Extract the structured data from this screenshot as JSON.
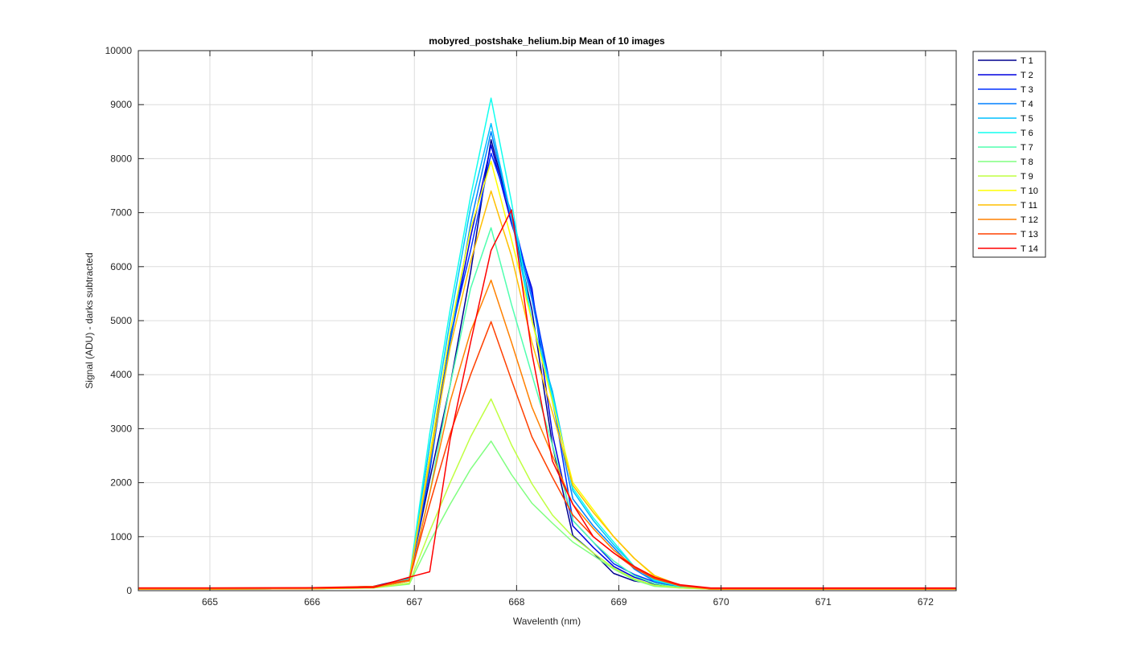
{
  "chart_data": {
    "type": "line",
    "title": "mobyred_postshake_helium.bip  Mean of 10 images",
    "xlabel": "Wavelenth (nm)",
    "ylabel": "Signal (ADU) - darks subtracted",
    "xlim": [
      664.3,
      672.3
    ],
    "ylim": [
      0,
      10000
    ],
    "xticks": [
      665,
      666,
      667,
      668,
      669,
      670,
      671,
      672
    ],
    "yticks": [
      0,
      1000,
      2000,
      3000,
      4000,
      5000,
      6000,
      7000,
      8000,
      9000,
      10000
    ],
    "grid": true,
    "legend_position": "outside-right",
    "series": [
      {
        "name": "T 1",
        "color": "#00008f",
        "x": [
          664.3,
          665,
          666,
          666.6,
          666.95,
          667.15,
          667.35,
          667.55,
          667.75,
          667.95,
          668.15,
          668.35,
          668.55,
          668.75,
          668.95,
          669.15,
          669.35,
          669.6,
          669.9,
          670.5,
          671.5,
          672.3
        ],
        "y": [
          40,
          40,
          45,
          80,
          230,
          2050,
          3800,
          5900,
          8350,
          6900,
          5200,
          2700,
          1020,
          700,
          320,
          180,
          120,
          60,
          30,
          30,
          30,
          30
        ]
      },
      {
        "name": "T 2",
        "color": "#0000df",
        "x": [
          664.3,
          665,
          666,
          666.6,
          666.95,
          667.15,
          667.35,
          667.55,
          667.75,
          667.95,
          668.15,
          668.35,
          668.55,
          668.75,
          668.95,
          669.15,
          669.35,
          669.6,
          669.9,
          670.5,
          671.5,
          672.3
        ],
        "y": [
          40,
          40,
          45,
          70,
          200,
          2500,
          4600,
          6550,
          8250,
          6800,
          5600,
          2900,
          1200,
          800,
          450,
          250,
          130,
          70,
          30,
          30,
          30,
          30
        ]
      },
      {
        "name": "T 3",
        "color": "#0030ff",
        "x": [
          664.3,
          665,
          666,
          666.6,
          666.95,
          667.15,
          667.35,
          667.55,
          667.75,
          667.95,
          668.15,
          668.35,
          668.55,
          668.75,
          668.95,
          669.15,
          669.35,
          669.6,
          669.9,
          670.5,
          671.5,
          672.3
        ],
        "y": [
          30,
          30,
          35,
          60,
          180,
          2200,
          4700,
          6300,
          8100,
          7000,
          5500,
          3600,
          1300,
          900,
          500,
          300,
          160,
          80,
          30,
          30,
          30,
          30
        ]
      },
      {
        "name": "T 4",
        "color": "#0080ff",
        "x": [
          664.3,
          665,
          666,
          666.6,
          666.95,
          667.15,
          667.35,
          667.55,
          667.75,
          667.95,
          668.15,
          668.35,
          668.55,
          668.75,
          668.95,
          669.15,
          669.35,
          669.6,
          669.9,
          670.5,
          671.5,
          672.3
        ],
        "y": [
          30,
          30,
          35,
          60,
          180,
          2300,
          4600,
          6800,
          8500,
          6900,
          5400,
          3500,
          1700,
          1200,
          800,
          400,
          170,
          80,
          30,
          30,
          30,
          30
        ]
      },
      {
        "name": "T 5",
        "color": "#00c0ff",
        "x": [
          664.3,
          665,
          666,
          666.6,
          666.95,
          667.15,
          667.35,
          667.55,
          667.75,
          667.95,
          668.15,
          668.35,
          668.55,
          668.75,
          668.95,
          669.15,
          669.35,
          669.6,
          669.9,
          670.5,
          671.5,
          672.3
        ],
        "y": [
          30,
          30,
          35,
          60,
          200,
          2700,
          5000,
          7100,
          8650,
          6900,
          5000,
          3700,
          1850,
          1300,
          850,
          450,
          180,
          80,
          30,
          30,
          30,
          30
        ]
      },
      {
        "name": "T 6",
        "color": "#10ffef",
        "x": [
          664.3,
          665,
          666,
          666.6,
          666.95,
          667.15,
          667.35,
          667.55,
          667.75,
          667.95,
          668.15,
          668.35,
          668.55,
          668.75,
          668.95,
          669.15,
          669.35,
          669.6,
          669.9,
          670.5,
          671.5,
          672.3
        ],
        "y": [
          30,
          30,
          35,
          60,
          220,
          2900,
          5200,
          7300,
          9120,
          7200,
          5000,
          3600,
          1900,
          1350,
          900,
          450,
          200,
          80,
          30,
          30,
          30,
          30
        ]
      },
      {
        "name": "T 7",
        "color": "#50ffaf",
        "x": [
          664.3,
          665,
          666,
          666.6,
          666.95,
          667.15,
          667.35,
          667.55,
          667.75,
          667.95,
          668.15,
          668.35,
          668.55,
          668.75,
          668.95,
          669.15,
          669.35,
          669.6,
          669.9,
          670.5,
          671.5,
          672.3
        ],
        "y": [
          30,
          30,
          35,
          55,
          180,
          1800,
          3800,
          5600,
          6720,
          5300,
          4000,
          2700,
          1300,
          900,
          550,
          280,
          130,
          60,
          30,
          30,
          30,
          30
        ]
      },
      {
        "name": "T 8",
        "color": "#80ff80",
        "x": [
          664.3,
          665,
          666,
          666.6,
          666.95,
          667.15,
          667.35,
          667.55,
          667.75,
          667.95,
          668.15,
          668.35,
          668.55,
          668.75,
          668.95,
          669.15,
          669.35,
          669.6,
          669.9,
          670.5,
          671.5,
          672.3
        ],
        "y": [
          30,
          30,
          35,
          50,
          120,
          900,
          1600,
          2250,
          2770,
          2150,
          1620,
          1250,
          900,
          650,
          400,
          200,
          80,
          50,
          30,
          30,
          30,
          30
        ]
      },
      {
        "name": "T 9",
        "color": "#bfff40",
        "x": [
          664.3,
          665,
          666,
          666.6,
          666.95,
          667.15,
          667.35,
          667.55,
          667.75,
          667.95,
          668.15,
          668.35,
          668.55,
          668.75,
          668.95,
          669.15,
          669.35,
          669.6,
          669.9,
          670.5,
          671.5,
          672.3
        ],
        "y": [
          30,
          30,
          35,
          50,
          140,
          1100,
          2000,
          2850,
          3550,
          2700,
          1980,
          1400,
          1000,
          700,
          420,
          220,
          100,
          50,
          30,
          30,
          30,
          30
        ]
      },
      {
        "name": "T 10",
        "color": "#ffff00",
        "x": [
          664.3,
          665,
          666,
          666.6,
          666.95,
          667.15,
          667.35,
          667.55,
          667.75,
          667.95,
          668.15,
          668.35,
          668.55,
          668.75,
          668.95,
          669.15,
          669.35,
          669.6,
          669.9,
          670.5,
          671.5,
          672.3
        ],
        "y": [
          30,
          30,
          35,
          60,
          200,
          2500,
          4800,
          6700,
          7950,
          6500,
          5000,
          3500,
          2000,
          1500,
          1000,
          600,
          260,
          100,
          30,
          30,
          30,
          30
        ]
      },
      {
        "name": "T 11",
        "color": "#ffbf00",
        "x": [
          664.3,
          665,
          666,
          666.6,
          666.95,
          667.15,
          667.35,
          667.55,
          667.75,
          667.95,
          668.15,
          668.35,
          668.55,
          668.75,
          668.95,
          669.15,
          669.35,
          669.6,
          669.9,
          670.5,
          671.5,
          672.3
        ],
        "y": [
          30,
          30,
          35,
          60,
          200,
          2400,
          4500,
          6100,
          7400,
          6200,
          4600,
          3300,
          1950,
          1450,
          1000,
          600,
          280,
          100,
          30,
          30,
          30,
          30
        ]
      },
      {
        "name": "T 12",
        "color": "#ff8000",
        "x": [
          664.3,
          665,
          666,
          666.6,
          666.95,
          667.15,
          667.35,
          667.55,
          667.75,
          667.95,
          668.15,
          668.35,
          668.55,
          668.75,
          668.95,
          669.15,
          669.35,
          669.6,
          669.9,
          670.5,
          671.5,
          672.3
        ],
        "y": [
          30,
          30,
          35,
          60,
          180,
          1800,
          3500,
          4800,
          5750,
          4600,
          3400,
          2500,
          1600,
          1150,
          750,
          450,
          230,
          90,
          30,
          30,
          30,
          30
        ]
      },
      {
        "name": "T 13",
        "color": "#ff4000",
        "x": [
          664.3,
          665,
          666,
          666.6,
          666.95,
          667.15,
          667.35,
          667.55,
          667.75,
          667.95,
          668.15,
          668.35,
          668.55,
          668.75,
          668.95,
          669.15,
          669.35,
          669.6,
          669.9,
          670.5,
          671.5,
          672.3
        ],
        "y": [
          50,
          50,
          55,
          80,
          200,
          1600,
          2900,
          4000,
          4980,
          3900,
          2850,
          2100,
          1400,
          1000,
          700,
          420,
          220,
          90,
          40,
          40,
          40,
          40
        ]
      },
      {
        "name": "T 14",
        "color": "#ff0000",
        "x": [
          664.3,
          665,
          666,
          666.6,
          666.95,
          667.15,
          667.35,
          667.55,
          667.75,
          667.95,
          668.15,
          668.35,
          668.55,
          668.75,
          668.95,
          669.15,
          669.35,
          669.6,
          669.9,
          670.5,
          671.5,
          672.3
        ],
        "y": [
          50,
          50,
          55,
          60,
          250,
          350,
          2800,
          4600,
          6300,
          7050,
          4400,
          2400,
          1600,
          1000,
          700,
          450,
          250,
          110,
          50,
          50,
          50,
          50
        ]
      }
    ]
  }
}
